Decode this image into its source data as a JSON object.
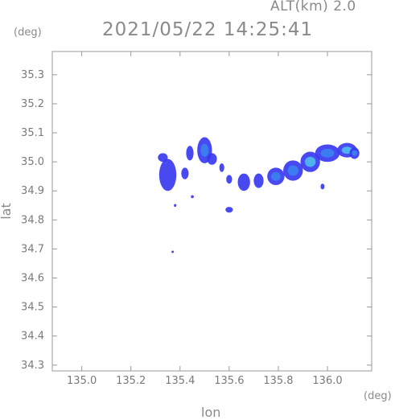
{
  "header": {
    "alt_label": "ALT(km)  2.0",
    "datetime": "2021/05/22 14:25:41",
    "y_unit": "(deg)",
    "x_unit": "(deg)"
  },
  "chart_data": {
    "type": "heatmap",
    "title": "2021/05/22 14:25:41",
    "xlabel": "lon",
    "ylabel": "lat",
    "xlim": [
      134.88,
      136.18
    ],
    "ylim": [
      34.28,
      35.38
    ],
    "x_ticks": [
      "135.0",
      "135.2",
      "135.4",
      "135.6",
      "135.8",
      "136.0"
    ],
    "x_tick_values": [
      135.0,
      135.2,
      135.4,
      135.6,
      135.8,
      136.0
    ],
    "y_ticks": [
      "34.3",
      "34.4",
      "34.5",
      "34.6",
      "34.7",
      "34.8",
      "34.9",
      "35.0",
      "35.1",
      "35.2",
      "35.3"
    ],
    "y_tick_values": [
      34.3,
      34.4,
      34.5,
      34.6,
      34.7,
      34.8,
      34.9,
      35.0,
      35.1,
      35.2,
      35.3
    ],
    "grid": false,
    "colors": {
      "low": "#3a3af0",
      "mid": "#3c7ff0",
      "high": "#4fb8ee",
      "axis": "#9a9a9a"
    },
    "echo_regions": [
      {
        "lon": 135.35,
        "lat": 34.955,
        "rx": 0.035,
        "ry": 0.055,
        "level": 1
      },
      {
        "lon": 135.33,
        "lat": 35.015,
        "rx": 0.02,
        "ry": 0.015,
        "level": 1
      },
      {
        "lon": 135.42,
        "lat": 34.96,
        "rx": 0.015,
        "ry": 0.02,
        "level": 1
      },
      {
        "lon": 135.44,
        "lat": 35.03,
        "rx": 0.015,
        "ry": 0.025,
        "level": 1
      },
      {
        "lon": 135.5,
        "lat": 35.04,
        "rx": 0.03,
        "ry": 0.045,
        "level": 2
      },
      {
        "lon": 135.53,
        "lat": 35.01,
        "rx": 0.02,
        "ry": 0.02,
        "level": 1
      },
      {
        "lon": 135.57,
        "lat": 34.98,
        "rx": 0.01,
        "ry": 0.015,
        "level": 1
      },
      {
        "lon": 135.6,
        "lat": 34.94,
        "rx": 0.012,
        "ry": 0.015,
        "level": 1
      },
      {
        "lon": 135.66,
        "lat": 34.93,
        "rx": 0.025,
        "ry": 0.03,
        "level": 1
      },
      {
        "lon": 135.72,
        "lat": 34.935,
        "rx": 0.02,
        "ry": 0.025,
        "level": 1
      },
      {
        "lon": 135.79,
        "lat": 34.95,
        "rx": 0.035,
        "ry": 0.03,
        "level": 2
      },
      {
        "lon": 135.86,
        "lat": 34.97,
        "rx": 0.04,
        "ry": 0.035,
        "level": 2
      },
      {
        "lon": 135.93,
        "lat": 35.0,
        "rx": 0.04,
        "ry": 0.035,
        "level": 3
      },
      {
        "lon": 136.0,
        "lat": 35.03,
        "rx": 0.05,
        "ry": 0.03,
        "level": 2
      },
      {
        "lon": 136.08,
        "lat": 35.04,
        "rx": 0.04,
        "ry": 0.025,
        "level": 3
      },
      {
        "lon": 136.11,
        "lat": 35.03,
        "rx": 0.02,
        "ry": 0.02,
        "level": 2
      },
      {
        "lon": 135.98,
        "lat": 34.915,
        "rx": 0.008,
        "ry": 0.01,
        "level": 1
      },
      {
        "lon": 135.6,
        "lat": 34.835,
        "rx": 0.015,
        "ry": 0.01,
        "level": 1
      },
      {
        "lon": 135.38,
        "lat": 34.85,
        "rx": 0.005,
        "ry": 0.005,
        "level": 1
      },
      {
        "lon": 135.45,
        "lat": 34.88,
        "rx": 0.006,
        "ry": 0.005,
        "level": 1
      },
      {
        "lon": 135.37,
        "lat": 34.69,
        "rx": 0.004,
        "ry": 0.004,
        "level": 1
      }
    ]
  }
}
